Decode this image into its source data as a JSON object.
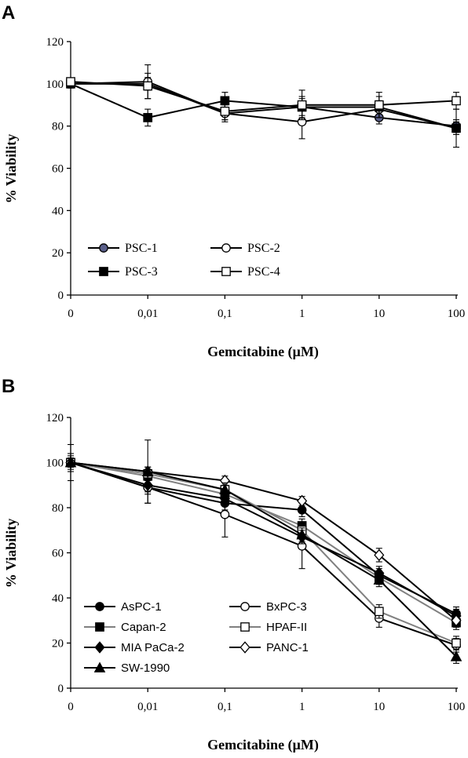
{
  "chart_data": [
    {
      "type": "line",
      "panel_label": "A",
      "xlabel": "Gemcitabine (µM)",
      "ylabel": "% Viability",
      "categories": [
        "0",
        "0,01",
        "0,1",
        "1",
        "10",
        "100"
      ],
      "ylim": [
        0,
        120
      ],
      "yticks": [
        "0",
        "20",
        "40",
        "60",
        "80",
        "100",
        "120"
      ],
      "grid": false,
      "legend_placement": "bottom-left",
      "legend_columns": 2,
      "series": [
        {
          "name": "PSC-1",
          "values": [
            100,
            100,
            86,
            89,
            84,
            80
          ],
          "errors": [
            1,
            3,
            3,
            4,
            3,
            3
          ],
          "marker": "circle",
          "marker_fill": "#5a5f8a",
          "line_color": "#000000"
        },
        {
          "name": "PSC-2",
          "values": [
            100,
            101,
            86,
            82,
            88,
            79
          ],
          "errors": [
            1,
            8,
            4,
            8,
            4,
            3
          ],
          "marker": "circle",
          "marker_fill": "#ffffff",
          "line_color": "#000000"
        },
        {
          "name": "PSC-3",
          "values": [
            100,
            84,
            92,
            89,
            89,
            79
          ],
          "errors": [
            2,
            4,
            4,
            5,
            5,
            9
          ],
          "marker": "square",
          "marker_fill": "#000000",
          "line_color": "#000000"
        },
        {
          "name": "PSC-4",
          "values": [
            101,
            99,
            87,
            90,
            90,
            92
          ],
          "errors": [
            1,
            6,
            4,
            7,
            6,
            4
          ],
          "marker": "square",
          "marker_fill": "#ffffff",
          "line_color": "#000000"
        }
      ]
    },
    {
      "type": "line",
      "panel_label": "B",
      "xlabel": "Gemcitabine (µM)",
      "ylabel": "% Viability",
      "categories": [
        "0",
        "0,01",
        "0,1",
        "1",
        "10",
        "100"
      ],
      "ylim": [
        0,
        120
      ],
      "yticks": [
        "0",
        "20",
        "40",
        "60",
        "80",
        "100",
        "120"
      ],
      "grid": false,
      "legend_placement": "bottom-left",
      "legend_columns": 2,
      "series": [
        {
          "name": "AsPC-1",
          "values": [
            100,
            89,
            82,
            79,
            50,
            33
          ],
          "errors": [
            2,
            3,
            3,
            3,
            3,
            3
          ],
          "marker": "circle",
          "marker_fill": "#000000",
          "line_color": "#000000"
        },
        {
          "name": "BxPC-3",
          "values": [
            100,
            89,
            77,
            63,
            31,
            19
          ],
          "errors": [
            3,
            7,
            10,
            10,
            4,
            3
          ],
          "marker": "circle",
          "marker_fill": "#ffffff",
          "line_color": "#000000"
        },
        {
          "name": "Capan-2",
          "values": [
            100,
            94,
            86,
            72,
            49,
            29
          ],
          "errors": [
            2,
            3,
            3,
            3,
            3,
            3
          ],
          "marker": "square",
          "marker_fill": "#000000",
          "line_color": "#808080"
        },
        {
          "name": "HPAF-II",
          "values": [
            100,
            95,
            88,
            70,
            34,
            20
          ],
          "errors": [
            2,
            3,
            3,
            3,
            3,
            3
          ],
          "marker": "square",
          "marker_fill": "#ffffff",
          "line_color": "#808080"
        },
        {
          "name": "MIA PaCa-2",
          "values": [
            100,
            90,
            84,
            67,
            51,
            32
          ],
          "errors": [
            4,
            3,
            3,
            3,
            3,
            3
          ],
          "marker": "diamond",
          "marker_fill": "#000000",
          "line_color": "#000000"
        },
        {
          "name": "PANC-1",
          "values": [
            100,
            96,
            92,
            83,
            59,
            30
          ],
          "errors": [
            2,
            2,
            2,
            2,
            3,
            3
          ],
          "marker": "diamond",
          "marker_fill": "#ffffff",
          "line_color": "#000000"
        },
        {
          "name": "SW-1990",
          "values": [
            100,
            96,
            88,
            68,
            48,
            14
          ],
          "errors": [
            8,
            14,
            3,
            3,
            3,
            3
          ],
          "marker": "triangle",
          "marker_fill": "#000000",
          "line_color": "#000000"
        }
      ]
    }
  ]
}
